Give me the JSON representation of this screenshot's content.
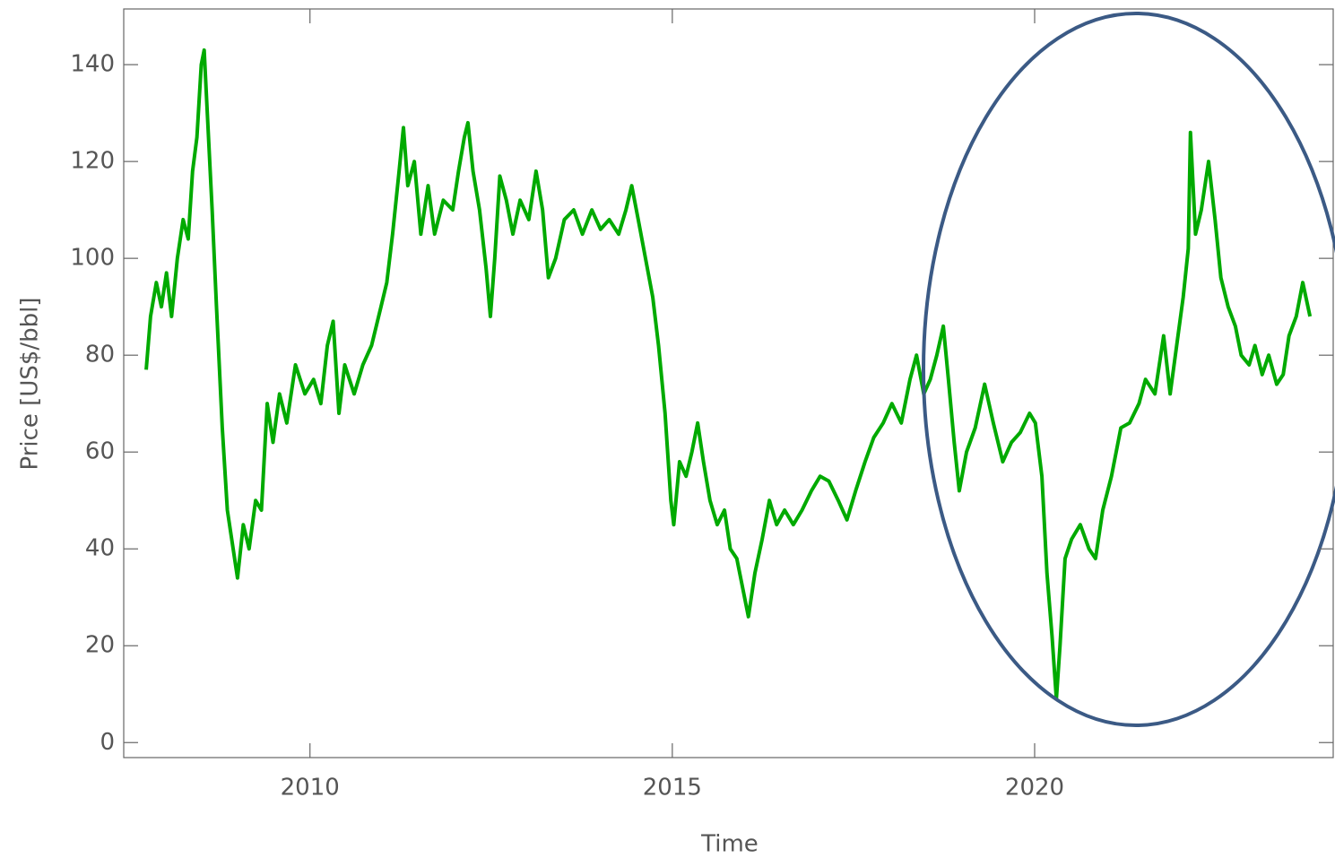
{
  "chart_data": {
    "type": "line",
    "x_label": "Time",
    "y_label": "Price [US$/bbl]",
    "xlim": [
      2007.43,
      2024.12
    ],
    "ylim": [
      -3.1,
      151.5
    ],
    "xticks": [
      2010,
      2015,
      2020
    ],
    "yticks": [
      0,
      20,
      40,
      60,
      80,
      100,
      120,
      140
    ],
    "grid": false,
    "series": [
      {
        "name": "Price",
        "color": "#00aa00",
        "x": [
          2007.74,
          2007.8,
          2007.88,
          2007.95,
          2008.02,
          2008.09,
          2008.17,
          2008.25,
          2008.32,
          2008.38,
          2008.44,
          2008.5,
          2008.54,
          2008.59,
          2008.65,
          2008.71,
          2008.79,
          2008.86,
          2008.94,
          2009.0,
          2009.08,
          2009.16,
          2009.25,
          2009.33,
          2009.41,
          2009.49,
          2009.58,
          2009.68,
          2009.8,
          2009.93,
          2010.05,
          2010.15,
          2010.24,
          2010.32,
          2010.4,
          2010.48,
          2010.61,
          2010.73,
          2010.85,
          2010.98,
          2011.06,
          2011.14,
          2011.23,
          2011.29,
          2011.35,
          2011.44,
          2011.53,
          2011.63,
          2011.72,
          2011.84,
          2011.97,
          2012.05,
          2012.13,
          2012.18,
          2012.25,
          2012.34,
          2012.43,
          2012.49,
          2012.55,
          2012.62,
          2012.71,
          2012.8,
          2012.9,
          2013.02,
          2013.12,
          2013.21,
          2013.29,
          2013.39,
          2013.51,
          2013.64,
          2013.76,
          2013.89,
          2014.01,
          2014.13,
          2014.26,
          2014.36,
          2014.44,
          2014.53,
          2014.63,
          2014.73,
          2014.81,
          2014.9,
          2014.98,
          2015.02,
          2015.1,
          2015.19,
          2015.27,
          2015.35,
          2015.43,
          2015.52,
          2015.62,
          2015.72,
          2015.8,
          2015.89,
          2015.97,
          2016.05,
          2016.14,
          2016.24,
          2016.34,
          2016.44,
          2016.55,
          2016.67,
          2016.79,
          2016.92,
          2017.04,
          2017.16,
          2017.29,
          2017.41,
          2017.53,
          2017.66,
          2017.78,
          2017.91,
          2018.03,
          2018.16,
          2018.28,
          2018.37,
          2018.47,
          2018.56,
          2018.65,
          2018.74,
          2018.81,
          2018.89,
          2018.96,
          2019.06,
          2019.18,
          2019.31,
          2019.43,
          2019.56,
          2019.68,
          2019.8,
          2019.93,
          2020.01,
          2020.1,
          2020.17,
          2020.24,
          2020.3,
          2020.35,
          2020.42,
          2020.51,
          2020.63,
          2020.75,
          2020.84,
          2020.94,
          2021.06,
          2021.19,
          2021.31,
          2021.44,
          2021.53,
          2021.66,
          2021.78,
          2021.87,
          2021.96,
          2022.05,
          2022.12,
          2022.15,
          2022.22,
          2022.3,
          2022.4,
          2022.49,
          2022.57,
          2022.67,
          2022.77,
          2022.85,
          2022.96,
          2023.04,
          2023.14,
          2023.23,
          2023.34,
          2023.43,
          2023.51,
          2023.61,
          2023.7,
          2023.8
        ],
        "values": [
          77,
          88,
          95,
          90,
          97,
          88,
          100,
          108,
          104,
          118,
          125,
          140,
          143,
          128,
          110,
          90,
          65,
          48,
          40,
          34,
          45,
          40,
          50,
          48,
          70,
          62,
          72,
          66,
          78,
          72,
          75,
          70,
          82,
          87,
          68,
          78,
          72,
          78,
          82,
          90,
          95,
          105,
          118,
          127,
          115,
          120,
          105,
          115,
          105,
          112,
          110,
          118,
          125,
          128,
          118,
          110,
          98,
          88,
          100,
          117,
          112,
          105,
          112,
          108,
          118,
          110,
          96,
          100,
          108,
          110,
          105,
          110,
          106,
          108,
          105,
          110,
          115,
          108,
          100,
          92,
          82,
          68,
          50,
          45,
          58,
          55,
          60,
          66,
          58,
          50,
          45,
          48,
          40,
          38,
          32,
          26,
          35,
          42,
          50,
          45,
          48,
          45,
          48,
          52,
          55,
          54,
          50,
          46,
          52,
          58,
          63,
          66,
          70,
          66,
          75,
          80,
          72,
          75,
          80,
          86,
          75,
          62,
          52,
          60,
          65,
          74,
          66,
          58,
          62,
          64,
          68,
          66,
          55,
          35,
          22,
          9,
          20,
          38,
          42,
          45,
          40,
          38,
          48,
          55,
          65,
          66,
          70,
          75,
          72,
          84,
          72,
          82,
          92,
          102,
          126,
          105,
          110,
          120,
          108,
          96,
          90,
          86,
          80,
          78,
          82,
          76,
          80,
          74,
          76,
          84,
          88,
          95,
          88
        ]
      }
    ]
  }
}
